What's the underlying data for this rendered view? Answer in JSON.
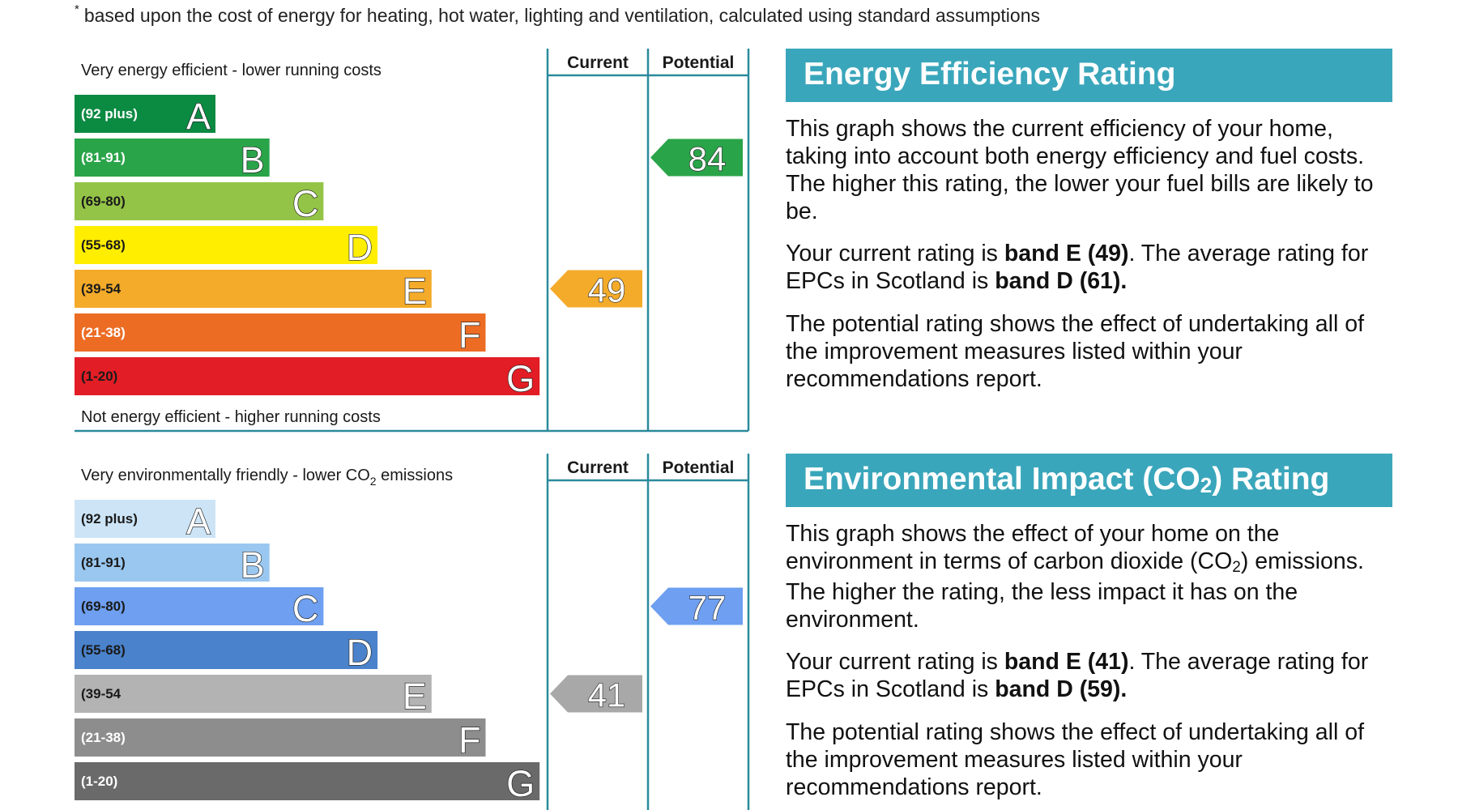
{
  "footnote": {
    "marker": "*",
    "text": "based upon the cost of energy for heating, hot water, lighting and ventilation, calculated using standard assumptions"
  },
  "chart_data": [
    {
      "type": "bar",
      "column_headers": [
        "Current",
        "Potential"
      ],
      "top_label": "Very energy efficient - lower running costs",
      "bottom_label": "Not energy efficient - higher running costs",
      "bands": [
        {
          "letter": "A",
          "range": "(92 plus)",
          "color": "#0b8a42",
          "range_color": "#ffffff"
        },
        {
          "letter": "B",
          "range": "(81-91)",
          "color": "#2aa449",
          "range_color": "#ffffff"
        },
        {
          "letter": "C",
          "range": "(69-80)",
          "color": "#94c447",
          "range_color": "#1a1a1a"
        },
        {
          "letter": "D",
          "range": "(55-68)",
          "color": "#ffee00",
          "range_color": "#1a1a1a"
        },
        {
          "letter": "E",
          "range": "(39-54",
          "color": "#f4ab2a",
          "range_color": "#1a1a1a"
        },
        {
          "letter": "F",
          "range": "(21-38)",
          "color": "#ec6c24",
          "range_color": "#ffffff"
        },
        {
          "letter": "G",
          "range": "(1-20)",
          "color": "#e31d25",
          "range_color": "#1a1a1a"
        }
      ],
      "current": {
        "value": 49,
        "band": "E",
        "color": "#f4ab2a"
      },
      "potential": {
        "value": 84,
        "band": "B",
        "color": "#2aa449"
      }
    },
    {
      "type": "bar",
      "column_headers": [
        "Current",
        "Potential"
      ],
      "top_label": "Very environmentally friendly - lower CO",
      "top_label_sub": "2",
      "top_label_tail": " emissions",
      "bottom_label": "",
      "bands": [
        {
          "letter": "A",
          "range": "(92 plus)",
          "color": "#cce4f6",
          "range_color": "#1a1a1a"
        },
        {
          "letter": "B",
          "range": "(81-91)",
          "color": "#9ac7f0",
          "range_color": "#1a1a1a"
        },
        {
          "letter": "C",
          "range": "(69-80)",
          "color": "#6e9ff0",
          "range_color": "#1a1a1a"
        },
        {
          "letter": "D",
          "range": "(55-68)",
          "color": "#4a82cb",
          "range_color": "#1a1a1a"
        },
        {
          "letter": "E",
          "range": "(39-54",
          "color": "#b3b3b3",
          "range_color": "#1a1a1a"
        },
        {
          "letter": "F",
          "range": "(21-38)",
          "color": "#8d8d8d",
          "range_color": "#ffffff"
        },
        {
          "letter": "G",
          "range": "(1-20)",
          "color": "#6a6a6a",
          "range_color": "#ffffff"
        }
      ],
      "current": {
        "value": 41,
        "band": "E",
        "color": "#a8a8a8"
      },
      "potential": {
        "value": 77,
        "band": "C",
        "color": "#6e9ff0"
      }
    }
  ],
  "energy_panel": {
    "title": "Energy Efficiency Rating",
    "p1": "This graph shows the current efficiency of your home, taking into account both energy efficiency and fuel costs. The higher this rating, the lower your fuel bills are likely to be.",
    "p2_a": "Your current rating is ",
    "p2_b": "band E (49)",
    "p2_c": ". The average rating for EPCs in Scotland is ",
    "p2_d": "band D (61).",
    "p3": "The potential rating shows the effect of undertaking all of the improvement measures listed within your recommendations report."
  },
  "env_panel": {
    "title_a": "Environmental Impact (CO",
    "title_sub": "2",
    "title_b": ") Rating",
    "p1_a": "This graph shows the effect of your home on the environment in terms of carbon dioxide (CO",
    "p1_sub": "2",
    "p1_b": ") emissions. The higher the rating, the less impact it has on the environment.",
    "p2_a": "Your current rating is ",
    "p2_b": "band E (41)",
    "p2_c": ". The average rating for EPCs in Scotland is ",
    "p2_d": "band D (59).",
    "p3": "The potential rating shows the effect of undertaking all of the improvement measures listed within your recommendations report."
  }
}
